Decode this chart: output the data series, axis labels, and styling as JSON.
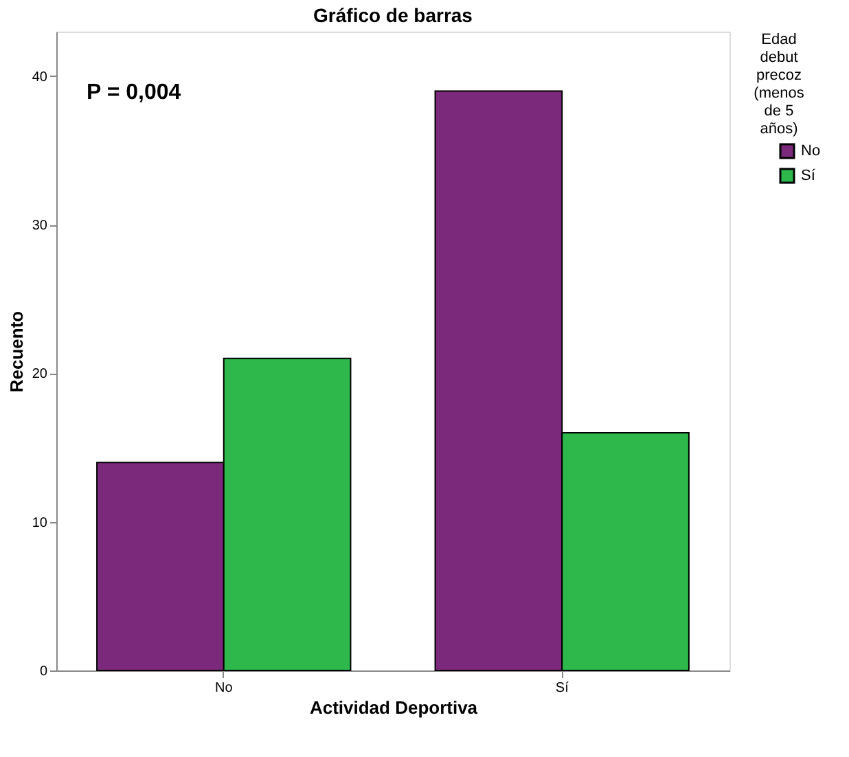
{
  "chart_data": {
    "type": "bar",
    "title": "Gráfico de barras",
    "xlabel": "Actividad Deportiva",
    "ylabel": "Recuento",
    "legend_title": "Edad debut precoz (menos de 5 años)",
    "categories": [
      "No",
      "Sí"
    ],
    "series": [
      {
        "name": "No",
        "color": "#7b2a7b",
        "values": [
          14,
          39
        ]
      },
      {
        "name": "Sí",
        "color": "#2eb84b",
        "values": [
          21,
          16
        ]
      }
    ],
    "ylim": [
      0,
      43
    ],
    "yticks": [
      0,
      10,
      20,
      30,
      40
    ],
    "grid": false,
    "legend": "top right",
    "annotations": [
      "P = 0,004"
    ]
  }
}
